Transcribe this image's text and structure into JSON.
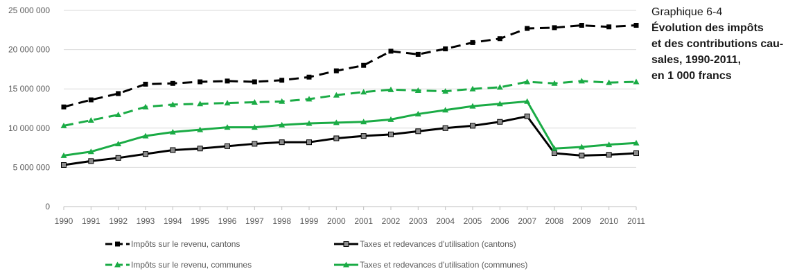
{
  "caption": {
    "number": "Graphique 6-4",
    "title_lines": [
      "Évolution des impôts",
      "et des contributions cau-",
      "sales, 1990-2011,",
      "en 1 000 francs"
    ]
  },
  "chart_data": {
    "type": "line",
    "x": [
      "1990",
      "1991",
      "1992",
      "1993",
      "1994",
      "1995",
      "1996",
      "1997",
      "1998",
      "1999",
      "2000",
      "2001",
      "2002",
      "2003",
      "2004",
      "2005",
      "2006",
      "2007",
      "2008",
      "2009",
      "2010",
      "2011"
    ],
    "ylim": [
      0,
      25000000
    ],
    "yticks": [
      0,
      5000000,
      10000000,
      15000000,
      20000000,
      25000000
    ],
    "ytick_labels": [
      "0",
      "5 000 000",
      "10 000 000",
      "15 000 000",
      "20 000 000",
      "25 000 000"
    ],
    "grid": true,
    "legend_position": "bottom",
    "series": [
      {
        "name": "Impôts sur le revenu, cantons",
        "color": "#000000",
        "dashed": true,
        "marker": "square",
        "values": [
          12700000,
          13600000,
          14400000,
          15600000,
          15700000,
          15900000,
          16000000,
          15900000,
          16100000,
          16500000,
          17300000,
          18000000,
          19800000,
          19400000,
          20100000,
          20900000,
          21400000,
          22700000,
          22800000,
          23100000,
          22900000,
          23100000
        ]
      },
      {
        "name": "Taxes et redevances d'utilisation (cantons)",
        "color": "#000000",
        "dashed": false,
        "marker": "square-gray",
        "values": [
          5300000,
          5800000,
          6200000,
          6700000,
          7200000,
          7400000,
          7700000,
          8000000,
          8200000,
          8200000,
          8700000,
          9000000,
          9200000,
          9600000,
          10000000,
          10300000,
          10800000,
          11500000,
          6800000,
          6500000,
          6600000,
          6800000
        ]
      },
      {
        "name": "Impôts sur le revenu,  communes",
        "color": "#1aab45",
        "dashed": true,
        "marker": "triangle",
        "values": [
          10300000,
          11000000,
          11700000,
          12700000,
          13000000,
          13100000,
          13200000,
          13300000,
          13400000,
          13700000,
          14200000,
          14600000,
          14900000,
          14800000,
          14700000,
          15000000,
          15200000,
          15900000,
          15700000,
          16000000,
          15800000,
          15900000
        ]
      },
      {
        "name": "Taxes et redevances d'utilisation (communes)",
        "color": "#1aab45",
        "dashed": false,
        "marker": "triangle",
        "values": [
          6500000,
          7000000,
          8000000,
          9000000,
          9500000,
          9800000,
          10100000,
          10100000,
          10400000,
          10600000,
          10700000,
          10800000,
          11100000,
          11800000,
          12300000,
          12800000,
          13100000,
          13400000,
          7400000,
          7600000,
          7900000,
          8100000
        ]
      }
    ]
  }
}
